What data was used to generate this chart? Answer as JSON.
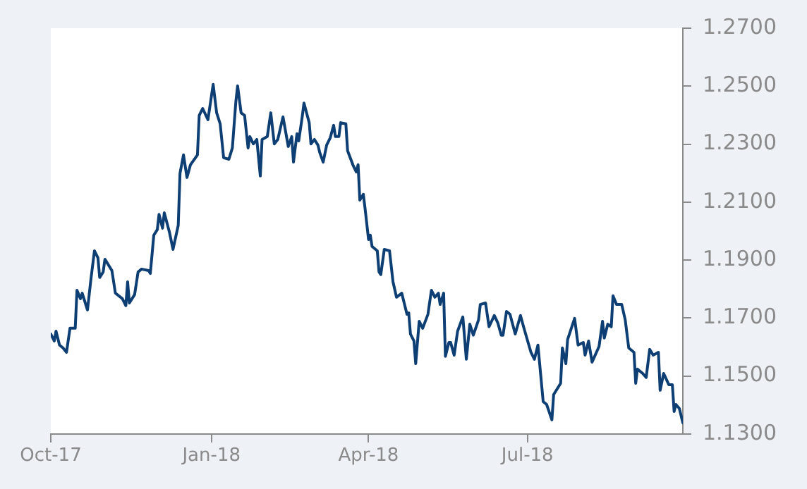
{
  "chart_data": {
    "type": "line",
    "x": [
      "2017-10-01",
      "2017-10-03",
      "2017-10-04",
      "2017-10-06",
      "2017-10-08",
      "2017-10-10",
      "2017-10-12",
      "2017-10-15",
      "2017-10-16",
      "2017-10-18",
      "2017-10-19",
      "2017-10-22",
      "2017-10-24",
      "2017-10-26",
      "2017-10-28",
      "2017-10-29",
      "2017-10-31",
      "2017-11-01",
      "2017-11-05",
      "2017-11-07",
      "2017-11-11",
      "2017-11-13",
      "2017-11-14",
      "2017-11-15",
      "2017-11-18",
      "2017-11-20",
      "2017-11-22",
      "2017-11-26",
      "2017-11-27",
      "2017-11-29",
      "2017-12-01",
      "2017-12-02",
      "2017-12-04",
      "2017-12-05",
      "2017-12-08",
      "2017-12-10",
      "2017-12-13",
      "2017-12-14",
      "2017-12-16",
      "2017-12-18",
      "2017-12-20",
      "2017-12-24",
      "2017-12-25",
      "2017-12-27",
      "2017-12-30",
      "2018-01-02",
      "2018-01-04",
      "2018-01-06",
      "2018-01-08",
      "2018-01-11",
      "2018-01-13",
      "2018-01-15",
      "2018-01-16",
      "2018-01-18",
      "2018-01-20",
      "2018-01-22",
      "2018-01-23",
      "2018-01-25",
      "2018-01-27",
      "2018-01-29",
      "2018-01-30",
      "2018-02-02",
      "2018-02-04",
      "2018-02-06",
      "2018-02-08",
      "2018-02-11",
      "2018-02-12",
      "2018-02-14",
      "2018-02-16",
      "2018-02-17",
      "2018-02-19",
      "2018-02-20",
      "2018-02-22",
      "2018-02-23",
      "2018-02-26",
      "2018-02-27",
      "2018-03-01",
      "2018-03-03",
      "2018-03-04",
      "2018-03-06",
      "2018-03-08",
      "2018-03-10",
      "2018-03-12",
      "2018-03-13",
      "2018-03-15",
      "2018-03-16",
      "2018-03-19",
      "2018-03-20",
      "2018-03-23",
      "2018-03-25",
      "2018-03-26",
      "2018-03-27",
      "2018-03-29",
      "2018-03-30",
      "2018-04-01",
      "2018-04-02",
      "2018-04-03",
      "2018-04-06",
      "2018-04-07",
      "2018-04-08",
      "2018-04-10",
      "2018-04-13",
      "2018-04-15",
      "2018-04-17",
      "2018-04-20",
      "2018-04-23",
      "2018-04-24",
      "2018-04-25",
      "2018-04-27",
      "2018-04-28",
      "2018-04-30",
      "2018-05-02",
      "2018-05-05",
      "2018-05-07",
      "2018-05-09",
      "2018-05-11",
      "2018-05-12",
      "2018-05-14",
      "2018-05-15",
      "2018-05-17",
      "2018-05-18",
      "2018-05-20",
      "2018-05-22",
      "2018-05-25",
      "2018-05-27",
      "2018-05-29",
      "2018-05-31",
      "2018-06-03",
      "2018-06-04",
      "2018-06-07",
      "2018-06-09",
      "2018-06-12",
      "2018-06-14",
      "2018-06-16",
      "2018-06-17",
      "2018-06-19",
      "2018-06-21",
      "2018-06-24",
      "2018-06-27",
      "2018-06-29",
      "2018-07-03",
      "2018-07-05",
      "2018-07-07",
      "2018-07-10",
      "2018-07-12",
      "2018-07-15",
      "2018-07-16",
      "2018-07-20",
      "2018-07-21",
      "2018-07-23",
      "2018-07-24",
      "2018-07-28",
      "2018-07-30",
      "2018-08-02",
      "2018-08-03",
      "2018-08-05",
      "2018-08-07",
      "2018-08-11",
      "2018-08-13",
      "2018-08-14",
      "2018-08-16",
      "2018-08-18",
      "2018-08-19",
      "2018-08-21",
      "2018-08-24",
      "2018-08-26",
      "2018-08-28",
      "2018-08-31",
      "2018-09-01",
      "2018-09-02",
      "2018-09-05",
      "2018-09-07",
      "2018-09-09",
      "2018-09-11",
      "2018-09-14",
      "2018-09-15",
      "2018-09-17",
      "2018-09-20",
      "2018-09-22",
      "2018-09-23",
      "2018-09-24",
      "2018-09-26",
      "2018-09-28"
    ],
    "series": [
      {
        "color": "#0e3f74",
        "values": [
          1.1645,
          1.1621,
          1.1655,
          1.1607,
          1.1597,
          1.1582,
          1.1665,
          1.1665,
          1.1796,
          1.1767,
          1.1786,
          1.1728,
          1.1835,
          1.1932,
          1.1908,
          1.184,
          1.1859,
          1.1903,
          1.1864,
          1.1786,
          1.1767,
          1.1743,
          1.1825,
          1.1752,
          1.1781,
          1.1859,
          1.1869,
          1.1864,
          1.1854,
          1.1986,
          1.2005,
          1.2058,
          1.201,
          1.2063,
          1.1995,
          1.1937,
          1.202,
          1.2199,
          1.2263,
          1.2185,
          1.2229,
          1.2263,
          1.2399,
          1.2423,
          1.2384,
          1.2506,
          1.2408,
          1.237,
          1.2253,
          1.2248,
          1.2287,
          1.2447,
          1.2501,
          1.2408,
          1.2399,
          1.2287,
          1.2326,
          1.2301,
          1.2316,
          1.219,
          1.2316,
          1.2326,
          1.2408,
          1.2301,
          1.2316,
          1.2394,
          1.236,
          1.2292,
          1.2326,
          1.2238,
          1.2336,
          1.2311,
          1.2394,
          1.2442,
          1.2374,
          1.2301,
          1.2316,
          1.2297,
          1.2272,
          1.2238,
          1.2297,
          1.2321,
          1.2365,
          1.2326,
          1.2326,
          1.2374,
          1.237,
          1.2277,
          1.2229,
          1.2204,
          1.2229,
          1.2107,
          1.2127,
          1.2078,
          1.1971,
          1.1986,
          1.1947,
          1.1932,
          1.1859,
          1.185,
          1.1937,
          1.1932,
          1.1825,
          1.1772,
          1.1786,
          1.1713,
          1.1718,
          1.1645,
          1.1621,
          1.1543,
          1.1689,
          1.1665,
          1.1713,
          1.1796,
          1.1772,
          1.1786,
          1.1747,
          1.1786,
          1.1568,
          1.1616,
          1.1616,
          1.1572,
          1.1655,
          1.1704,
          1.1558,
          1.1679,
          1.1641,
          1.1694,
          1.1747,
          1.1752,
          1.167,
          1.1709,
          1.1684,
          1.1641,
          1.1641,
          1.1723,
          1.1713,
          1.1645,
          1.1709,
          1.1665,
          1.1582,
          1.1558,
          1.1607,
          1.1412,
          1.1402,
          1.1349,
          1.1436,
          1.1475,
          1.1597,
          1.1543,
          1.1626,
          1.1699,
          1.1607,
          1.1616,
          1.1572,
          1.1621,
          1.1548,
          1.1602,
          1.1689,
          1.1631,
          1.1679,
          1.167,
          1.1777,
          1.1747,
          1.1747,
          1.1694,
          1.1597,
          1.1582,
          1.1475,
          1.1524,
          1.1509,
          1.1495,
          1.1592,
          1.1572,
          1.1582,
          1.1451,
          1.1509,
          1.147,
          1.147,
          1.1378,
          1.1402,
          1.1388,
          1.1339
        ]
      }
    ],
    "xlim": [
      "2017-10-01",
      "2018-09-28"
    ],
    "xticks": [
      {
        "value": "2017-10-01",
        "label": "Oct-17"
      },
      {
        "value": "2018-01-01",
        "label": "Jan-18"
      },
      {
        "value": "2018-04-01",
        "label": "Apr-18"
      },
      {
        "value": "2018-07-01",
        "label": "Jul-18"
      }
    ],
    "ylim": [
      1.13,
      1.27
    ],
    "yticks": [
      {
        "value": 1.13,
        "label": "1.1300"
      },
      {
        "value": 1.15,
        "label": "1.1500"
      },
      {
        "value": 1.17,
        "label": "1.1700"
      },
      {
        "value": 1.19,
        "label": "1.1900"
      },
      {
        "value": 1.21,
        "label": "1.2100"
      },
      {
        "value": 1.23,
        "label": "1.2300"
      },
      {
        "value": 1.25,
        "label": "1.2500"
      },
      {
        "value": 1.27,
        "label": "1.2700"
      }
    ]
  }
}
